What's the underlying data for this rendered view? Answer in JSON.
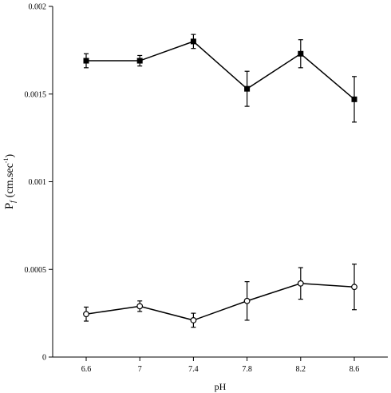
{
  "chart_data": {
    "type": "line",
    "title": "",
    "xlabel": "pH",
    "ylabel": {
      "main": "P",
      "subscript": "f",
      "unit": "(cm.sec",
      "superscript": "-1",
      "close": ")"
    },
    "x": [
      6.6,
      7,
      7.4,
      7.8,
      8.2,
      8.6
    ],
    "x_tick_labels": [
      "6.6",
      "7",
      "7.4",
      "7.8",
      "8.2",
      "8.6"
    ],
    "y_tick_values": [
      0,
      0.0005,
      0.001,
      0.0015,
      0.002
    ],
    "y_tick_labels": [
      "0",
      "0.0005",
      "0.001",
      "0.0015",
      "0.002"
    ],
    "xlim": [
      6.35,
      8.85
    ],
    "ylim": [
      0,
      0.002
    ],
    "grid": false,
    "legend": "none",
    "series": [
      {
        "marker": "filled-square",
        "color": "#000000",
        "values": [
          0.00169,
          0.00169,
          0.0018,
          0.00153,
          0.00173,
          0.00147
        ],
        "errors": [
          4e-05,
          3e-05,
          4e-05,
          0.0001,
          8e-05,
          0.00013
        ]
      },
      {
        "marker": "open-circle",
        "color": "#000000",
        "values": [
          0.000245,
          0.00029,
          0.00021,
          0.00032,
          0.00042,
          0.0004
        ],
        "errors": [
          4e-05,
          3e-05,
          4e-05,
          0.00011,
          9e-05,
          0.00013
        ]
      }
    ]
  }
}
